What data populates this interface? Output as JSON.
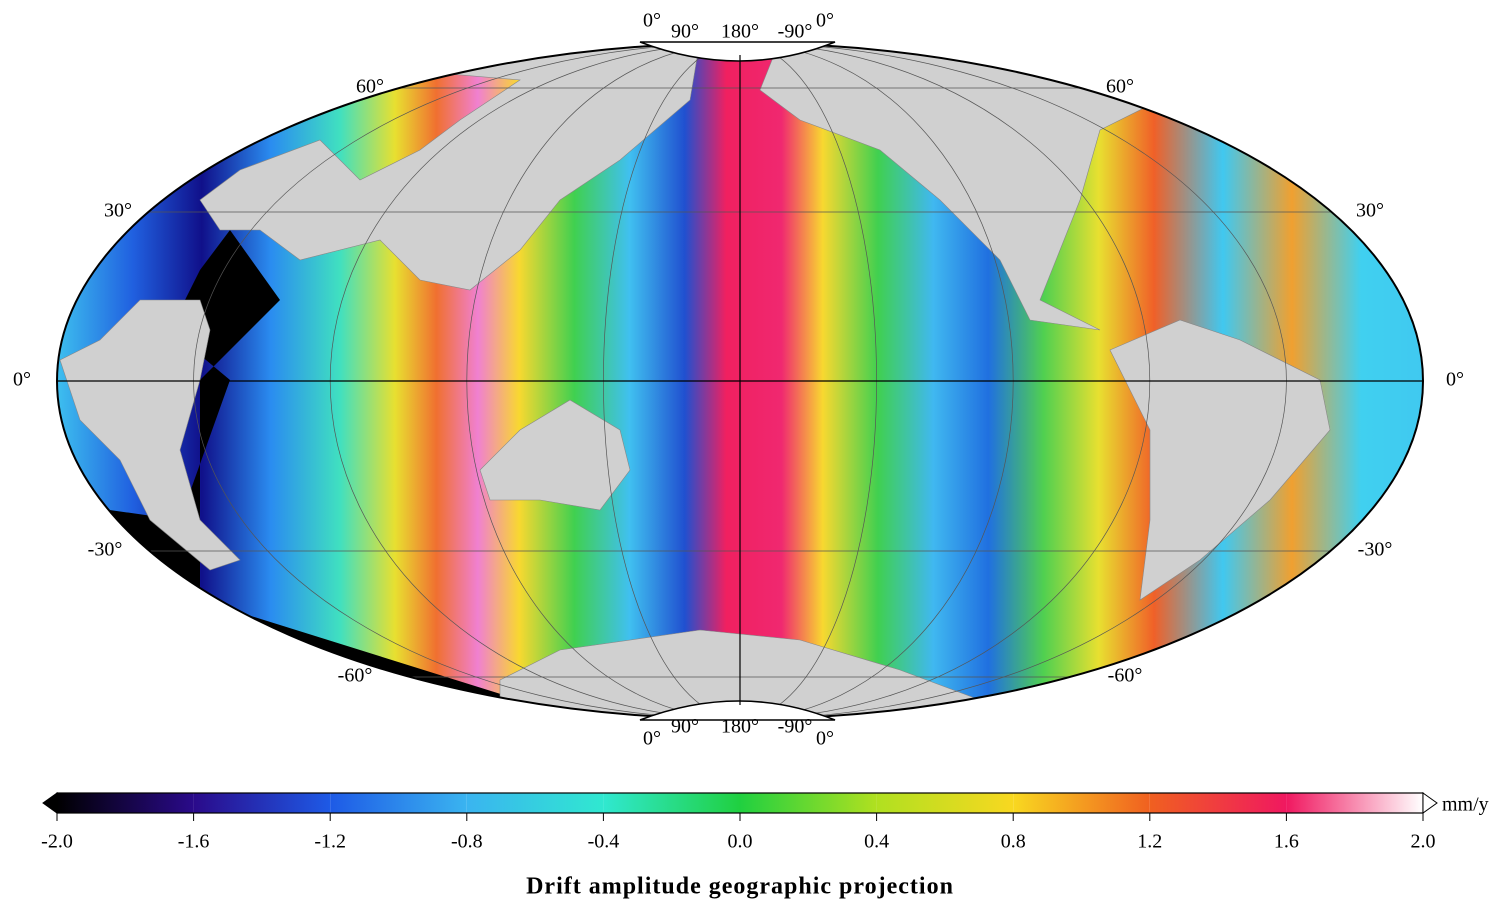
{
  "map": {
    "lat_labels": [
      "60°",
      "30°",
      "0°",
      "-30°",
      "-60°"
    ],
    "lon_labels": [
      "0°",
      "90°",
      "180°",
      "-90°",
      "0°"
    ]
  },
  "colorbar": {
    "title": "Drift amplitude geographic projection",
    "unit": "mm/y",
    "clim": [
      -2,
      2
    ],
    "ticks": [
      {
        "value": -2,
        "label": "-2.0"
      },
      -1.6,
      -1.2,
      -0.8,
      -0.4,
      {
        "value": 0,
        "label": "0.0"
      },
      0.4,
      0.8,
      1.2,
      1.6,
      {
        "value": 2,
        "label": "2.0"
      }
    ],
    "colors": [
      "#000000",
      "#2a0a8a",
      "#1e5ae6",
      "#3ab4f0",
      "#30e8d0",
      "#20d040",
      "#b0e020",
      "#f8d820",
      "#f06020",
      "#f01860",
      "#ffffff"
    ]
  }
}
